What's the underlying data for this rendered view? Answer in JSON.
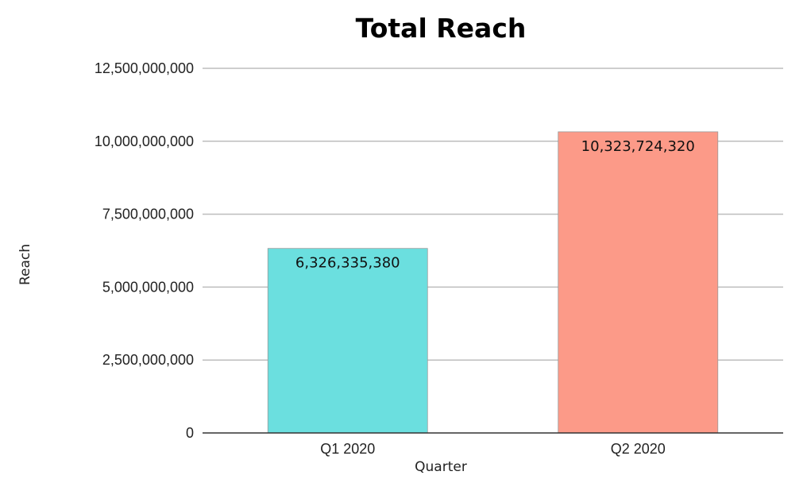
{
  "chart_data": {
    "type": "bar",
    "title": "Total Reach",
    "xlabel": "Quarter",
    "ylabel": "Reach",
    "categories": [
      "Q1 2020",
      "Q2 2020"
    ],
    "values": [
      6326335380,
      10323724320
    ],
    "value_labels": [
      "6,326,335,380",
      "10,323,724,320"
    ],
    "bar_colors": [
      "#6bdfdf",
      "#fc9a88"
    ],
    "ylim": [
      0,
      12500000000
    ],
    "yticks": [
      0,
      2500000000,
      5000000000,
      7500000000,
      10000000000,
      12500000000
    ],
    "ytick_labels": [
      "0",
      "2,500,000,000",
      "5,000,000,000",
      "7,500,000,000",
      "10,000,000,000",
      "12,500,000,000"
    ],
    "grid": true,
    "legend": "none"
  }
}
